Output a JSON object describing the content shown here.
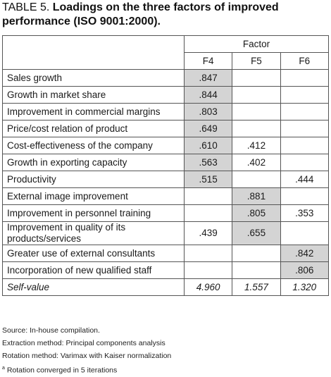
{
  "title": {
    "label": "TABLE 5.",
    "text": "Loadings on the three factors of improved performance (ISO 9001:2000)."
  },
  "table": {
    "group_header": "Factor",
    "columns": [
      "F4",
      "F5",
      "F6"
    ],
    "rows": [
      {
        "label": "Sales growth",
        "values": [
          ".847",
          "",
          ""
        ],
        "highlight": [
          true,
          false,
          false
        ]
      },
      {
        "label": "Growth in market share",
        "values": [
          ".844",
          "",
          ""
        ],
        "highlight": [
          true,
          false,
          false
        ]
      },
      {
        "label": "Improvement in commercial margins",
        "values": [
          ".803",
          "",
          ""
        ],
        "highlight": [
          true,
          false,
          false
        ]
      },
      {
        "label": "Price/cost relation of product",
        "values": [
          ".649",
          "",
          ""
        ],
        "highlight": [
          true,
          false,
          false
        ]
      },
      {
        "label": "Cost-effectiveness of the company",
        "values": [
          ".610",
          ".412",
          ""
        ],
        "highlight": [
          true,
          false,
          false
        ]
      },
      {
        "label": "Growth in exporting capacity",
        "values": [
          ".563",
          ".402",
          ""
        ],
        "highlight": [
          true,
          false,
          false
        ]
      },
      {
        "label": "Productivity",
        "values": [
          ".515",
          "",
          ".444"
        ],
        "highlight": [
          true,
          false,
          false
        ]
      },
      {
        "label": "External image improvement",
        "values": [
          "",
          ".881",
          ""
        ],
        "highlight": [
          false,
          true,
          false
        ]
      },
      {
        "label": "Improvement in personnel training",
        "values": [
          "",
          ".805",
          ".353"
        ],
        "highlight": [
          false,
          true,
          false
        ]
      },
      {
        "label": "Improvement in quality of its products/services",
        "values": [
          ".439",
          ".655",
          ""
        ],
        "highlight": [
          false,
          true,
          false
        ],
        "tall": true
      },
      {
        "label": "Greater use of external consultants",
        "values": [
          "",
          "",
          ".842"
        ],
        "highlight": [
          false,
          false,
          true
        ]
      },
      {
        "label": "Incorporation of new qualified staff",
        "values": [
          "",
          "",
          ".806"
        ],
        "highlight": [
          false,
          false,
          true
        ]
      }
    ],
    "footer": {
      "label": "Self-value",
      "values": [
        "4.960",
        "1.557",
        "1.320"
      ]
    }
  },
  "notes": {
    "source": "Source: In-house compilation.",
    "extraction": "Extraction method: Principal components analysis",
    "rotation": "Rotation method: Varimax with Kaiser normalization",
    "converged_marker": "a",
    "converged": "Rotation converged in 5 iterations"
  }
}
